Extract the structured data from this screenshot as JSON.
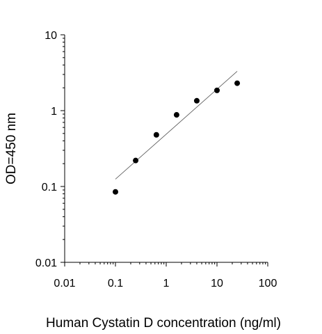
{
  "chart_data": {
    "type": "scatter",
    "title": "",
    "xlabel": "Human Cystatin D concentration (ng/ml)",
    "ylabel": "OD=450 nm",
    "x_scale": "log",
    "y_scale": "log",
    "xlim": [
      0.01,
      100
    ],
    "ylim": [
      0.01,
      10
    ],
    "x_ticks": [
      "0.01",
      "0.1",
      "1",
      "10",
      "100"
    ],
    "y_ticks": [
      "0.01",
      "0.1",
      "1",
      "10"
    ],
    "grid": false,
    "series": [
      {
        "points": [
          {
            "x": 0.1,
            "y": 0.085
          },
          {
            "x": 0.25,
            "y": 0.22
          },
          {
            "x": 0.64,
            "y": 0.48
          },
          {
            "x": 1.6,
            "y": 0.88
          },
          {
            "x": 4,
            "y": 1.35
          },
          {
            "x": 10,
            "y": 1.85
          },
          {
            "x": 25,
            "y": 2.3
          }
        ],
        "color": "#000000"
      }
    ],
    "trendline": {
      "x": [
        0.1,
        25
      ],
      "y": [
        0.125,
        3.3
      ],
      "color": "#555555"
    }
  }
}
